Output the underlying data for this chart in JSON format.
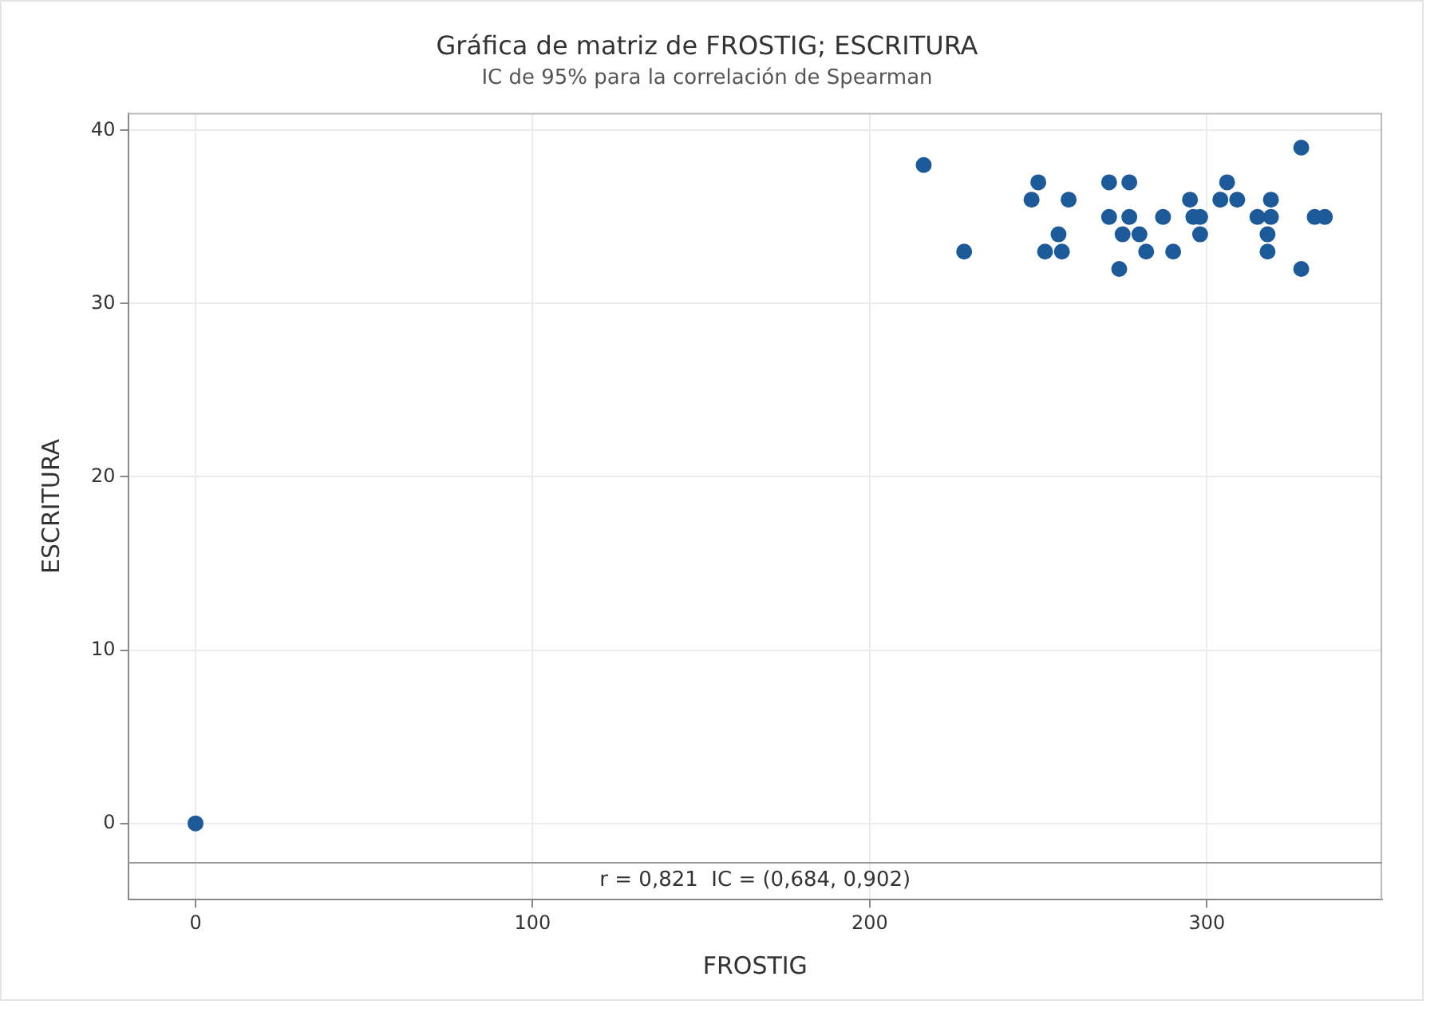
{
  "chart_data": {
    "type": "scatter",
    "title": "Gráfica de matriz de FROSTIG; ESCRITURA",
    "subtitle": "IC de 95% para la correlación de Spearman",
    "xlabel": "FROSTIG",
    "ylabel": "ESCRITURA",
    "x": [
      0,
      216,
      228,
      250,
      248,
      259,
      256,
      252,
      257,
      271,
      277,
      271,
      277,
      275,
      280,
      274,
      282,
      290,
      287,
      295,
      296,
      298,
      298,
      304,
      306,
      309,
      315,
      319,
      319,
      318,
      318,
      328,
      328,
      332,
      335
    ],
    "values": [
      0,
      38,
      33,
      37,
      36,
      36,
      34,
      33,
      33,
      37,
      37,
      35,
      35,
      34,
      34,
      32,
      33,
      33,
      35,
      36,
      35,
      35,
      34,
      36,
      37,
      36,
      35,
      36,
      35,
      34,
      33,
      39,
      32,
      35,
      35
    ],
    "color": "#1c5a9a",
    "marker": "circle",
    "xlim": [
      -20,
      352
    ],
    "xticks": [
      0,
      100,
      200,
      300
    ],
    "ylim": [
      -4.4,
      41
    ],
    "yticks": [
      0,
      10,
      20,
      30,
      40
    ],
    "grid": true,
    "ref_lines": [
      {
        "axis": "y",
        "value": -2.2,
        "color": "#9a9a9a"
      }
    ],
    "annotations": [
      "r = 0,821  IC = (0,684, 0,902)"
    ]
  }
}
